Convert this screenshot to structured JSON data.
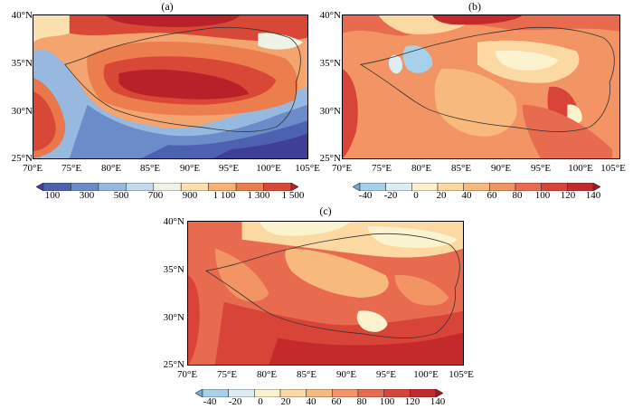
{
  "panels": [
    {
      "id": "a",
      "label": "(a)",
      "lat_labels": [
        "40°N",
        "35°N",
        "30°N",
        "25°N"
      ],
      "lon_labels": [
        "70°E",
        "75°E",
        "80°E",
        "85°E",
        "90°E",
        "95°E",
        "100°E",
        "105°E"
      ],
      "colorbar": {
        "labels": [
          "100",
          "300",
          "500",
          "700",
          "900",
          "1 100",
          "1 300",
          "1 500"
        ],
        "colors": [
          "#3f3f96",
          "#4c62b0",
          "#6b8cc8",
          "#97b9df",
          "#c4dbee",
          "#eef3e7",
          "#fbdfae",
          "#f6b173",
          "#ec7d4d",
          "#d94737",
          "#b8212a"
        ]
      }
    },
    {
      "id": "b",
      "label": "(b)",
      "lat_labels": [
        "40°N",
        "35°N",
        "30°N",
        "25°N"
      ],
      "lon_labels": [
        "70°E",
        "75°E",
        "80°E",
        "85°E",
        "90°E",
        "95°E",
        "100°E",
        "105°E"
      ],
      "colorbar": {
        "labels": [
          "-40",
          "-20",
          "0",
          "20",
          "40",
          "60",
          "80",
          "100",
          "120",
          "140"
        ],
        "colors": [
          "#6fa9d6",
          "#a7d0ea",
          "#dcedf4",
          "#fbf2cf",
          "#fcd9a2",
          "#f8b97d",
          "#f29464",
          "#e86b50",
          "#d94439",
          "#c42a2c",
          "#a8141d"
        ]
      }
    },
    {
      "id": "c",
      "label": "(c)",
      "lat_labels": [
        "40°N",
        "35°N",
        "30°N",
        "25°N"
      ],
      "lon_labels": [
        "70°E",
        "75°E",
        "80°E",
        "85°E",
        "90°E",
        "95°E",
        "100°E",
        "105°E"
      ],
      "colorbar": {
        "labels": [
          "-40",
          "-20",
          "0",
          "20",
          "40",
          "60",
          "80",
          "100",
          "120",
          "140"
        ],
        "colors": [
          "#6fa9d6",
          "#a7d0ea",
          "#dcedf4",
          "#fbf2cf",
          "#fcd9a2",
          "#f8b97d",
          "#f29464",
          "#e86b50",
          "#d94439",
          "#c42a2c",
          "#a8141d"
        ]
      }
    }
  ],
  "colors": {
    "outline": "#333333",
    "low_a": "#4c62b0",
    "high": "#d94737"
  }
}
